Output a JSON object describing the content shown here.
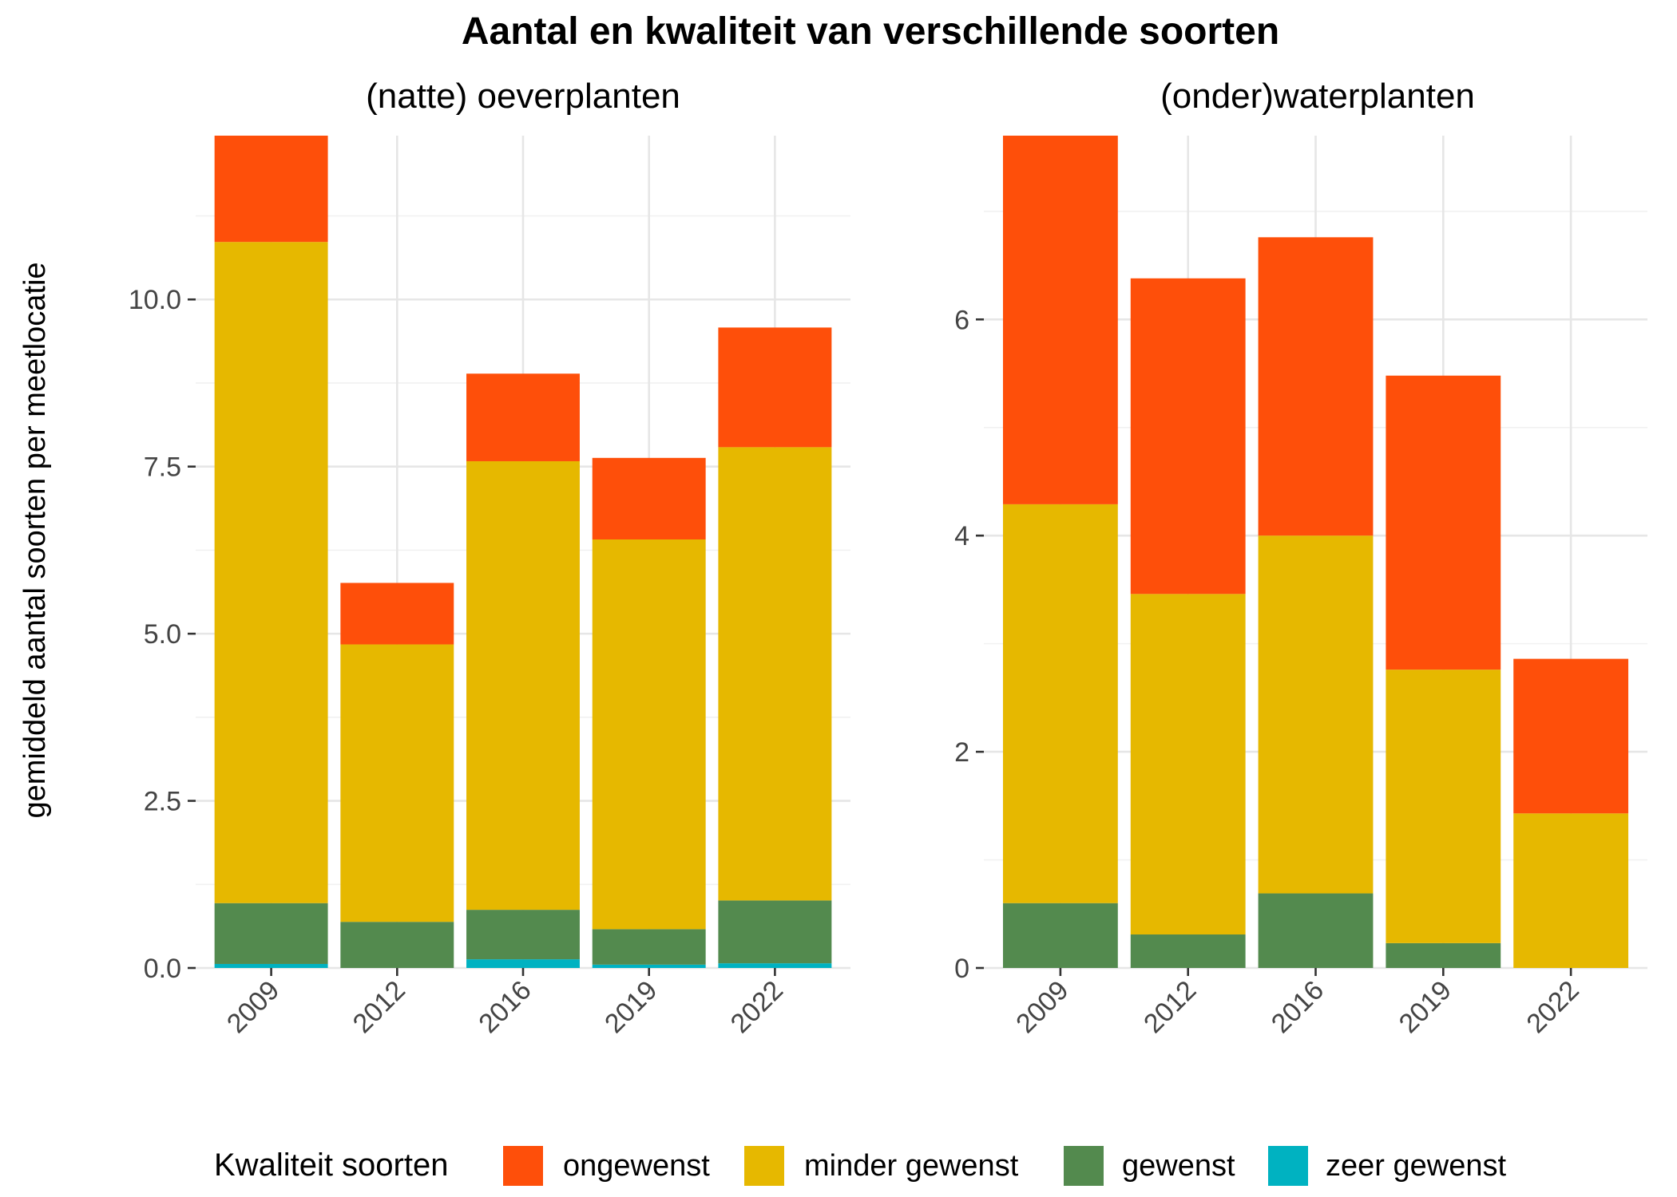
{
  "title": "Aantal en kwaliteit van verschillende soorten",
  "ylabel": "gemiddeld aantal soorten per meetlocatie",
  "legend": {
    "title": "Kwaliteit soorten",
    "items": [
      {
        "label": "ongewenst",
        "color": "#FE4F0A"
      },
      {
        "label": "minder gewenst",
        "color": "#E6B800"
      },
      {
        "label": "gewenst",
        "color": "#538A4E"
      },
      {
        "label": "zeer gewenst",
        "color": "#00B2C1"
      }
    ]
  },
  "chart_data": [
    {
      "type": "bar",
      "stacked": true,
      "subtitle": "(natte) oeverplanten",
      "categories": [
        "2009",
        "2012",
        "2016",
        "2019",
        "2022"
      ],
      "ylim": [
        0,
        12.45
      ],
      "yticks": [
        "0.0",
        "2.5",
        "5.0",
        "7.5",
        "10.0"
      ],
      "ytick_values": [
        0,
        2.5,
        5,
        7.5,
        10
      ],
      "series": [
        {
          "name": "zeer gewenst",
          "values": [
            0.06,
            0.0,
            0.13,
            0.05,
            0.07
          ]
        },
        {
          "name": "gewenst",
          "values": [
            0.91,
            0.69,
            0.74,
            0.53,
            0.94
          ]
        },
        {
          "name": "minder gewenst",
          "values": [
            9.89,
            4.15,
            6.71,
            5.83,
            6.78
          ]
        },
        {
          "name": "ongewenst",
          "values": [
            1.59,
            0.92,
            1.31,
            1.22,
            1.79
          ]
        }
      ]
    },
    {
      "type": "bar",
      "stacked": true,
      "subtitle": "(onder)waterplanten",
      "categories": [
        "2009",
        "2012",
        "2016",
        "2019",
        "2022"
      ],
      "ylim": [
        0,
        7.7
      ],
      "yticks": [
        "0",
        "2",
        "4",
        "6"
      ],
      "ytick_values": [
        0,
        2,
        4,
        6
      ],
      "series": [
        {
          "name": "zeer gewenst",
          "values": [
            0,
            0,
            0,
            0,
            0
          ]
        },
        {
          "name": "gewenst",
          "values": [
            0.6,
            0.31,
            0.69,
            0.23,
            0.0
          ]
        },
        {
          "name": "minder gewenst",
          "values": [
            3.69,
            3.15,
            3.31,
            2.53,
            1.43
          ]
        },
        {
          "name": "ongewenst",
          "values": [
            3.41,
            2.92,
            2.76,
            2.72,
            1.43
          ]
        }
      ]
    }
  ]
}
